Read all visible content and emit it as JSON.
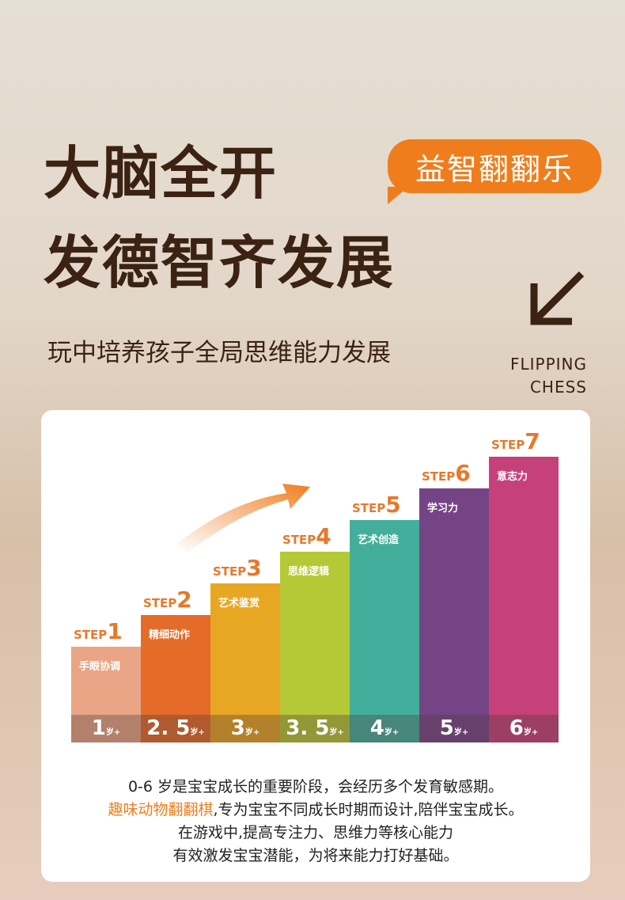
{
  "title": {
    "line1": "大脑全开",
    "line2": "发德智齐发展"
  },
  "badge": "益智翻翻乐",
  "subtitle": "玩中培养孩子全局思维能力发展",
  "english": {
    "line1": "FLIPPING",
    "line2": "CHESS"
  },
  "steps": [
    {
      "step": "STEP",
      "num": "1",
      "label": "手眼协调",
      "age": "1",
      "unit": "岁+",
      "color": "#e9a585"
    },
    {
      "step": "STEP",
      "num": "2",
      "label": "精细动作",
      "age": "2. 5",
      "unit": "岁+",
      "color": "#e46b28"
    },
    {
      "step": "STEP",
      "num": "3",
      "label": "艺术鉴赏",
      "age": "3",
      "unit": "岁+",
      "color": "#e8a722"
    },
    {
      "step": "STEP",
      "num": "4",
      "label": "思维逻辑",
      "age": "3. 5",
      "unit": "岁+",
      "color": "#b5c937"
    },
    {
      "step": "STEP",
      "num": "5",
      "label": "艺术创造",
      "age": "4",
      "unit": "岁+",
      "color": "#43ae9b"
    },
    {
      "step": "STEP",
      "num": "6",
      "label": "学习力",
      "age": "5",
      "unit": "岁+",
      "color": "#744485"
    },
    {
      "step": "STEP",
      "num": "7",
      "label": "意志力",
      "age": "6",
      "unit": "岁+",
      "color": "#c6417a"
    }
  ],
  "description": {
    "line1": "0-6 岁是宝宝成长的重要阶段，会经历多个发育敏感期。",
    "line2_highlight": "趣味动物翻翻棋",
    "line2_rest": ",专为宝宝不同成长时期而设计,陪伴宝宝成长。",
    "line3": "在游戏中,提高专注力、思维力等核心能力",
    "line4": "有效激发宝宝潜能，为将来能力打好基础。"
  }
}
